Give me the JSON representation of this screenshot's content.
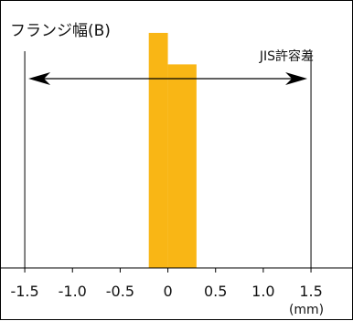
{
  "chart_data": {
    "type": "bar",
    "title": "フランジ幅(B)",
    "xlabel": "",
    "ylabel": "",
    "x_unit": "(mm)",
    "x_ticks": [
      -1.5,
      -1.0,
      -0.5,
      0,
      0.5,
      1.0,
      1.5
    ],
    "x_tick_labels": [
      "-1.5",
      "-1.0",
      "-0.5",
      "0",
      "0.5",
      "1.0",
      "1.5"
    ],
    "xlim": [
      -1.75,
      1.95
    ],
    "ylim": [
      0,
      100
    ],
    "bins": [
      {
        "from": -0.2,
        "to": 0.0,
        "value": 97
      },
      {
        "from": 0.0,
        "to": 0.3,
        "value": 84
      }
    ],
    "tolerance": {
      "label": "JIS許容差",
      "min": -1.5,
      "max": 1.5
    },
    "colors": {
      "bar": "#F9B615",
      "line": "#000000"
    },
    "grid": false,
    "legend": "none"
  }
}
